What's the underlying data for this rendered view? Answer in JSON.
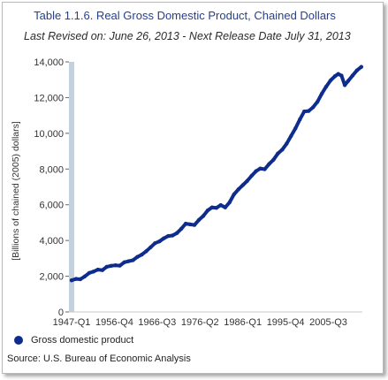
{
  "title": "Table 1.1.6. Real Gross Domestic Product, Chained Dollars",
  "subtitle": "Last Revised on: June 26, 2013 - Next Release Date July 31, 2013",
  "source": "Source: U.S. Bureau of Economic Analysis",
  "colors": {
    "series": "#0e2c8e",
    "title": "#27408b",
    "y_axis_bar": "#c3d0de"
  },
  "chart_data": {
    "type": "line",
    "title": "Table 1.1.6. Real Gross Domestic Product, Chained Dollars",
    "xlabel": "",
    "ylabel": "[Billions of chained (2005) dollars]",
    "ylim": [
      0,
      14000
    ],
    "yticks": [
      0,
      2000,
      4000,
      6000,
      8000,
      10000,
      12000,
      14000
    ],
    "ytick_labels": [
      "0",
      "2,000",
      "4,000",
      "6,000",
      "8,000",
      "10,000",
      "12,000",
      "14,000"
    ],
    "xlim": [
      1947.0,
      2013.25
    ],
    "xtick_labels": [
      {
        "label": "1947-Q1",
        "x": 1947.0
      },
      {
        "label": "1956-Q4",
        "x": 1956.75
      },
      {
        "label": "1966-Q3",
        "x": 1966.5
      },
      {
        "label": "1976-Q2",
        "x": 1976.25
      },
      {
        "label": "1986-Q1",
        "x": 1986.0
      },
      {
        "label": "1995-Q4",
        "x": 1995.75
      },
      {
        "label": "2005-Q3",
        "x": 2005.5
      }
    ],
    "grid": false,
    "legend_position": "bottom-left",
    "series": [
      {
        "name": "Gross domestic product",
        "x": [
          1947.0,
          1948.0,
          1949.0,
          1950.0,
          1951.0,
          1952.0,
          1953.0,
          1954.0,
          1955.0,
          1956.0,
          1957.0,
          1958.0,
          1959.0,
          1960.0,
          1961.0,
          1962.0,
          1963.0,
          1964.0,
          1965.0,
          1966.0,
          1967.0,
          1968.0,
          1969.0,
          1970.0,
          1971.0,
          1972.0,
          1973.0,
          1974.0,
          1975.0,
          1976.0,
          1977.0,
          1978.0,
          1979.0,
          1980.0,
          1981.0,
          1982.0,
          1983.0,
          1984.0,
          1985.0,
          1986.0,
          1987.0,
          1988.0,
          1989.0,
          1990.0,
          1991.0,
          1992.0,
          1993.0,
          1994.0,
          1995.0,
          1996.0,
          1997.0,
          1998.0,
          1999.0,
          2000.0,
          2001.0,
          2002.0,
          2003.0,
          2004.0,
          2005.0,
          2006.0,
          2007.0,
          2007.75,
          2008.5,
          2009.25,
          2010.0,
          2011.0,
          2012.0,
          2013.0
        ],
        "values": [
          1770,
          1850,
          1830,
          1990,
          2180,
          2260,
          2370,
          2340,
          2530,
          2580,
          2610,
          2590,
          2780,
          2840,
          2900,
          3080,
          3210,
          3400,
          3620,
          3850,
          3950,
          4120,
          4250,
          4280,
          4420,
          4660,
          4940,
          4900,
          4870,
          5150,
          5370,
          5680,
          5850,
          5830,
          5980,
          5850,
          6140,
          6580,
          6860,
          7100,
          7330,
          7620,
          7880,
          8030,
          7990,
          8280,
          8520,
          8870,
          9090,
          9420,
          9850,
          10280,
          10770,
          11220,
          11250,
          11450,
          11760,
          12220,
          12610,
          12960,
          13200,
          13320,
          13230,
          12700,
          12930,
          13230,
          13520,
          13720
        ]
      }
    ]
  }
}
